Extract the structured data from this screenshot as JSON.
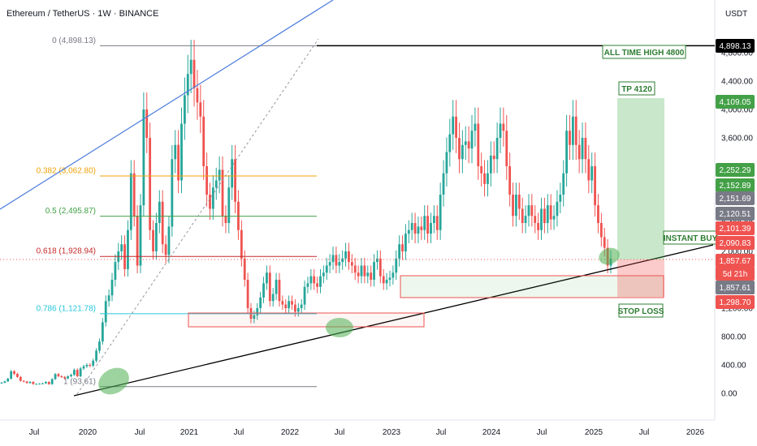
{
  "header": {
    "symbol": "Ethereum / TetherUS · 1W · BINANCE",
    "currency": "USDT"
  },
  "chart_data": {
    "type": "candlestick",
    "y_axis_ticks": [
      "0.00",
      "400.00",
      "800.00",
      "1,200.00",
      "1,600.00",
      "2,000.00",
      "2,400.00",
      "2,800.00",
      "3,200.00",
      "3,600.00",
      "4,000.00",
      "4,400.00",
      "4,800.00"
    ],
    "x_axis_ticks": [
      "Jul",
      "2020",
      "Jul",
      "2021",
      "Jul",
      "2022",
      "Jul",
      "2023",
      "Jul",
      "2024",
      "Jul",
      "2025",
      "Jul",
      "2026"
    ],
    "price_tags": [
      {
        "label": "4,898.13",
        "value": 4898.13,
        "color": "#000000"
      },
      {
        "label": "4,109.05",
        "value": 4109.05,
        "color": "#43a047"
      },
      {
        "label": "2,252.29",
        "value": 2252.29,
        "color": "#43a047"
      },
      {
        "label": "2,152.89",
        "value": 2152.89,
        "color": "#43a047"
      },
      {
        "label": "2,151.69",
        "value": 2151.69,
        "color": "#787b86"
      },
      {
        "label": "2,120.51",
        "value": 2120.51,
        "color": "#787b86"
      },
      {
        "label": "2,101.39",
        "value": 2101.39,
        "color": "#ef5350"
      },
      {
        "label": "2,090.83",
        "value": 2090.83,
        "color": "#ef5350"
      },
      {
        "label": "1,857.67",
        "value": 1857.67,
        "color": "#ef5350"
      },
      {
        "label": "5d 21h",
        "value": null,
        "color": "#ef5350"
      },
      {
        "label": "1,857.61",
        "value": 1857.61,
        "color": "#787b86"
      },
      {
        "label": "1,298.70",
        "value": 1298.7,
        "color": "#ef5350"
      }
    ],
    "fib_levels": [
      {
        "label": "0 (4,898.13)",
        "value": 4898.13,
        "color": "#787b86"
      },
      {
        "label": "0.382 (3,062.80)",
        "value": 3062.8,
        "color": "#f0a30a"
      },
      {
        "label": "0.5 (2,495.87)",
        "value": 2495.87,
        "color": "#43a047"
      },
      {
        "label": "0.618 (1,928.94)",
        "value": 1928.94,
        "color": "#c62828"
      },
      {
        "label": "0.786 (1,121.78)",
        "value": 1121.78,
        "color": "#26c6da"
      },
      {
        "label": "1 (93.61)",
        "value": 93.61,
        "color": "#787b86"
      }
    ],
    "annotations": [
      {
        "label": "ALL TIME HIGH 4800",
        "color": "#2e7d32"
      },
      {
        "label": "TP 4120",
        "color": "#2e7d32"
      },
      {
        "label": "INSTANT BUY",
        "color": "#2e7d32"
      },
      {
        "label": "STOP LOSS",
        "color": "#2e7d32"
      }
    ],
    "series": [
      {
        "values": [
          150,
          168,
          206,
          310,
          274,
          230,
          175,
          165,
          145,
          160,
          130,
          132,
          135,
          140,
          160,
          128,
          200,
          270,
          240,
          230,
          210,
          240,
          260,
          330,
          240,
          350,
          380,
          400,
          390,
          460,
          600,
          730,
          1000,
          1300,
          1380,
          1600,
          1850,
          2000,
          2100,
          1750,
          2300,
          3100,
          2500,
          1800,
          2650,
          4000,
          3600,
          2300,
          2000,
          2400,
          2700,
          2100,
          1950,
          2350,
          3300,
          3500,
          3000,
          3800,
          4200,
          4500,
          4700,
          4300,
          4100,
          3900,
          3200,
          2800,
          2600,
          2900,
          3000,
          3150,
          2500,
          2400,
          2900,
          3300,
          2700,
          2300,
          1900,
          1600,
          1200,
          1050,
          1100,
          1200,
          1350,
          1550,
          1700,
          1300,
          1400,
          1600,
          1300,
          1250,
          1200,
          1300,
          1250,
          1150,
          1200,
          1250,
          1500,
          1550,
          1650,
          1550,
          1500,
          1650,
          1700,
          1800,
          1850,
          1950,
          1800,
          1850,
          1900,
          2000,
          1850,
          1800,
          1700,
          1650,
          1800,
          1650,
          1700,
          1600,
          1850,
          1900,
          1650,
          1550,
          1600,
          1630,
          1700,
          1900,
          2100,
          2000,
          2250,
          2300,
          2400,
          2250,
          2350,
          2300,
          2500,
          2250,
          2400,
          2500,
          2300,
          2800,
          3100,
          3400,
          3650,
          3900,
          3600,
          3300,
          3500,
          3550,
          3450,
          3700,
          3800,
          3200,
          3100,
          2950,
          3100,
          3350,
          3300,
          3600,
          3800,
          3700,
          3200,
          2800,
          2500,
          2800,
          2600,
          2400,
          2500,
          2650,
          2500,
          2400,
          2300,
          2600,
          2400,
          2650,
          2450,
          2500,
          2700,
          2800,
          3100,
          3700,
          3500,
          3900,
          3500,
          3300,
          3600,
          3300,
          3000,
          3200,
          2650,
          2400,
          2200,
          2050,
          1800,
          1900
        ]
      }
    ],
    "ylim": [
      0,
      5600
    ]
  }
}
